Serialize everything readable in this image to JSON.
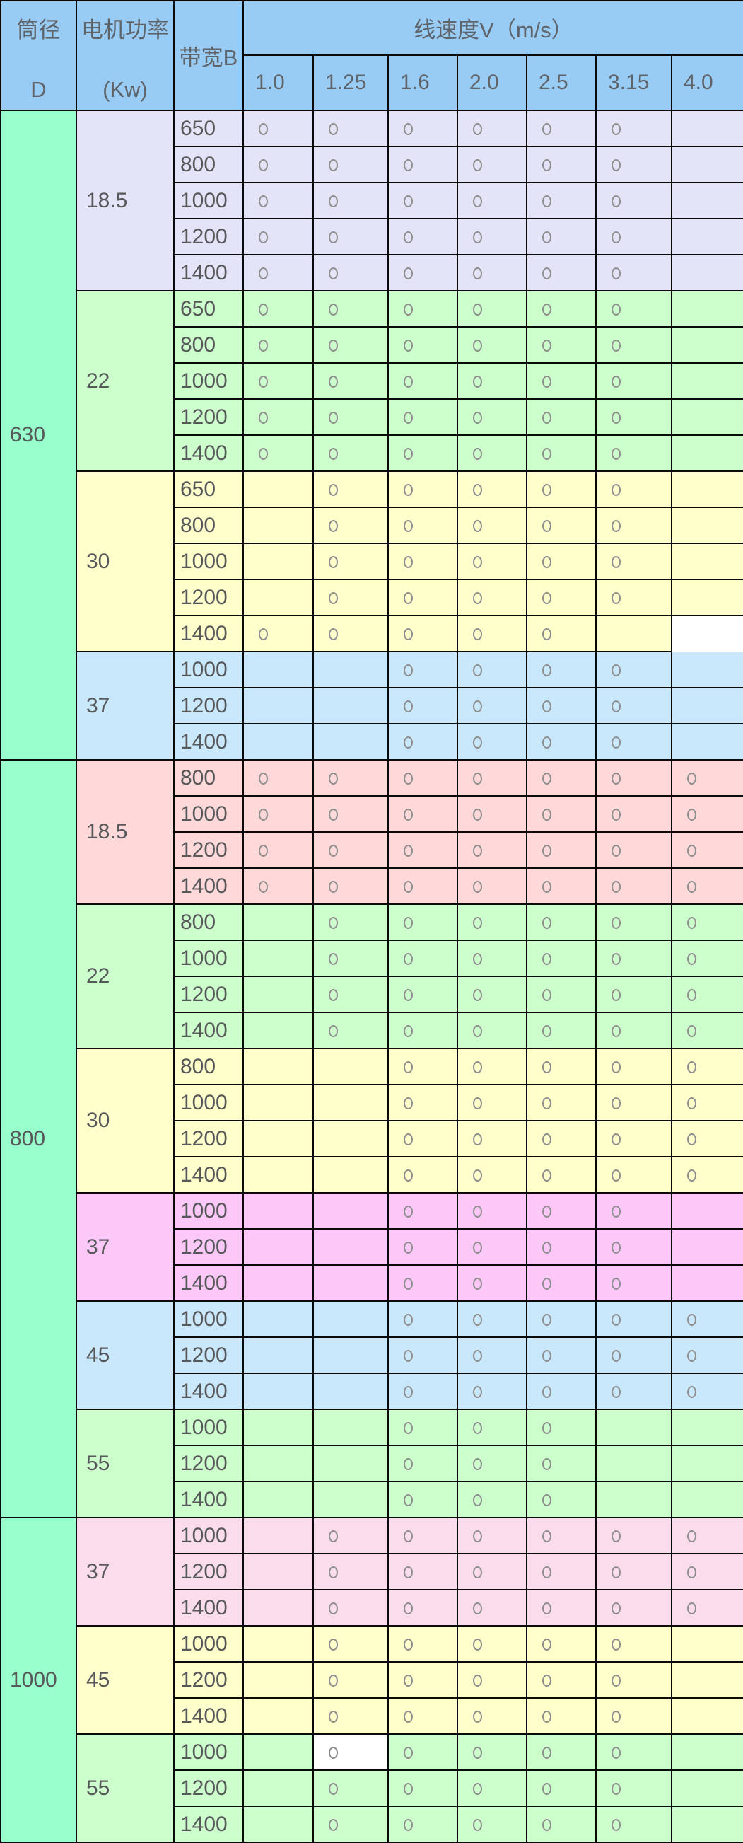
{
  "header": {
    "col1_top": "筒径",
    "col1_bottom": "D",
    "col2_top": "电机功率",
    "col2_bottom": "(Kw)",
    "col3": "带宽B",
    "speed_title": "线速度V（m/s）",
    "speeds": [
      "1.0",
      "1.25",
      "1.6",
      "2.0",
      "2.5",
      "3.15",
      "4.0"
    ],
    "marker": "○"
  },
  "colors": {
    "header_bg": "#98CCF4",
    "d_column_bg": "#99FFCC",
    "grid_border": "#0a0a0a",
    "text": "#57585a",
    "marker": "#8f8f8f",
    "anomaly_cell_bg": "#FFFFFF"
  },
  "mark_legend": "0=empty, 1=circle, 2=white cell no borders, 3=white cell with circle",
  "sections": [
    {
      "d": "630",
      "groups": [
        {
          "power": "18.5",
          "color": "#E4E4F8",
          "rows": [
            {
              "width": "650",
              "marks": [
                1,
                1,
                1,
                1,
                1,
                1,
                0
              ]
            },
            {
              "width": "800",
              "marks": [
                1,
                1,
                1,
                1,
                1,
                1,
                0
              ]
            },
            {
              "width": "1000",
              "marks": [
                1,
                1,
                1,
                1,
                1,
                1,
                0
              ]
            },
            {
              "width": "1200",
              "marks": [
                1,
                1,
                1,
                1,
                1,
                1,
                0
              ]
            },
            {
              "width": "1400",
              "marks": [
                1,
                1,
                1,
                1,
                1,
                1,
                0
              ]
            }
          ]
        },
        {
          "power": "22",
          "color": "#CCFFCC",
          "rows": [
            {
              "width": "650",
              "marks": [
                1,
                1,
                1,
                1,
                1,
                1,
                0
              ]
            },
            {
              "width": "800",
              "marks": [
                1,
                1,
                1,
                1,
                1,
                1,
                0
              ]
            },
            {
              "width": "1000",
              "marks": [
                1,
                1,
                1,
                1,
                1,
                1,
                0
              ]
            },
            {
              "width": "1200",
              "marks": [
                1,
                1,
                1,
                1,
                1,
                1,
                0
              ]
            },
            {
              "width": "1400",
              "marks": [
                1,
                1,
                1,
                1,
                1,
                1,
                0
              ]
            }
          ]
        },
        {
          "power": "30",
          "color": "#FFFFCC",
          "rows": [
            {
              "width": "650",
              "marks": [
                0,
                1,
                1,
                1,
                1,
                1,
                0
              ]
            },
            {
              "width": "800",
              "marks": [
                0,
                1,
                1,
                1,
                1,
                1,
                0
              ]
            },
            {
              "width": "1000",
              "marks": [
                0,
                1,
                1,
                1,
                1,
                1,
                0
              ]
            },
            {
              "width": "1200",
              "marks": [
                0,
                1,
                1,
                1,
                1,
                1,
                0
              ]
            },
            {
              "width": "1400",
              "marks": [
                1,
                1,
                1,
                1,
                1,
                0,
                2
              ]
            }
          ]
        },
        {
          "power": "37",
          "color": "#C9E8FC",
          "rows": [
            {
              "width": "1000",
              "marks": [
                0,
                0,
                1,
                1,
                1,
                1,
                0
              ]
            },
            {
              "width": "1200",
              "marks": [
                0,
                0,
                1,
                1,
                1,
                1,
                0
              ]
            },
            {
              "width": "1400",
              "marks": [
                0,
                0,
                1,
                1,
                1,
                1,
                0
              ]
            }
          ]
        }
      ]
    },
    {
      "d": "800",
      "groups": [
        {
          "power": "18.5",
          "color": "#FFD9D9",
          "rows": [
            {
              "width": "800",
              "marks": [
                1,
                1,
                1,
                1,
                1,
                1,
                1
              ]
            },
            {
              "width": "1000",
              "marks": [
                1,
                1,
                1,
                1,
                1,
                1,
                1
              ]
            },
            {
              "width": "1200",
              "marks": [
                1,
                1,
                1,
                1,
                1,
                1,
                1
              ]
            },
            {
              "width": "1400",
              "marks": [
                1,
                1,
                1,
                1,
                1,
                1,
                1
              ]
            }
          ]
        },
        {
          "power": "22",
          "color": "#CCFFCC",
          "rows": [
            {
              "width": "800",
              "marks": [
                0,
                1,
                1,
                1,
                1,
                1,
                1
              ]
            },
            {
              "width": "1000",
              "marks": [
                0,
                1,
                1,
                1,
                1,
                1,
                1
              ]
            },
            {
              "width": "1200",
              "marks": [
                0,
                1,
                1,
                1,
                1,
                1,
                1
              ]
            },
            {
              "width": "1400",
              "marks": [
                0,
                1,
                1,
                1,
                1,
                1,
                1
              ]
            }
          ]
        },
        {
          "power": "30",
          "color": "#FFFFCC",
          "rows": [
            {
              "width": "800",
              "marks": [
                0,
                0,
                1,
                1,
                1,
                1,
                1
              ]
            },
            {
              "width": "1000",
              "marks": [
                0,
                0,
                1,
                1,
                1,
                1,
                1
              ]
            },
            {
              "width": "1200",
              "marks": [
                0,
                0,
                1,
                1,
                1,
                1,
                1
              ]
            },
            {
              "width": "1400",
              "marks": [
                0,
                0,
                1,
                1,
                1,
                1,
                1
              ]
            }
          ]
        },
        {
          "power": "37",
          "color": "#FBC8F8",
          "rows": [
            {
              "width": "1000",
              "marks": [
                0,
                0,
                1,
                1,
                1,
                1,
                0
              ]
            },
            {
              "width": "1200",
              "marks": [
                0,
                0,
                1,
                1,
                1,
                1,
                0
              ]
            },
            {
              "width": "1400",
              "marks": [
                0,
                0,
                1,
                1,
                1,
                1,
                0
              ]
            }
          ]
        },
        {
          "power": "45",
          "color": "#C9E8FC",
          "rows": [
            {
              "width": "1000",
              "marks": [
                0,
                0,
                1,
                1,
                1,
                1,
                1
              ]
            },
            {
              "width": "1200",
              "marks": [
                0,
                0,
                1,
                1,
                1,
                1,
                1
              ]
            },
            {
              "width": "1400",
              "marks": [
                0,
                0,
                1,
                1,
                1,
                1,
                1
              ]
            }
          ]
        },
        {
          "power": "55",
          "color": "#CCFFCC",
          "rows": [
            {
              "width": "1000",
              "marks": [
                0,
                0,
                1,
                1,
                1,
                0,
                0
              ]
            },
            {
              "width": "1200",
              "marks": [
                0,
                0,
                1,
                1,
                1,
                0,
                0
              ]
            },
            {
              "width": "1400",
              "marks": [
                0,
                0,
                1,
                1,
                1,
                0,
                0
              ]
            }
          ]
        }
      ]
    },
    {
      "d": "1000",
      "groups": [
        {
          "power": "37",
          "color": "#FBDCEC",
          "rows": [
            {
              "width": "1000",
              "marks": [
                0,
                1,
                1,
                1,
                1,
                1,
                1
              ]
            },
            {
              "width": "1200",
              "marks": [
                0,
                1,
                1,
                1,
                1,
                1,
                1
              ]
            },
            {
              "width": "1400",
              "marks": [
                0,
                1,
                1,
                1,
                1,
                1,
                1
              ]
            }
          ]
        },
        {
          "power": "45",
          "color": "#FFFFCC",
          "rows": [
            {
              "width": "1000",
              "marks": [
                0,
                1,
                1,
                1,
                1,
                1,
                0
              ]
            },
            {
              "width": "1200",
              "marks": [
                0,
                1,
                1,
                1,
                1,
                1,
                0
              ]
            },
            {
              "width": "1400",
              "marks": [
                0,
                1,
                1,
                1,
                1,
                1,
                0
              ]
            }
          ]
        },
        {
          "power": "55",
          "color": "#CCFFCC",
          "rows": [
            {
              "width": "1000",
              "marks": [
                0,
                3,
                1,
                1,
                1,
                1,
                0
              ]
            },
            {
              "width": "1200",
              "marks": [
                0,
                1,
                1,
                1,
                1,
                1,
                0
              ]
            },
            {
              "width": "1400",
              "marks": [
                0,
                1,
                1,
                1,
                1,
                1,
                0
              ]
            }
          ]
        }
      ]
    }
  ]
}
